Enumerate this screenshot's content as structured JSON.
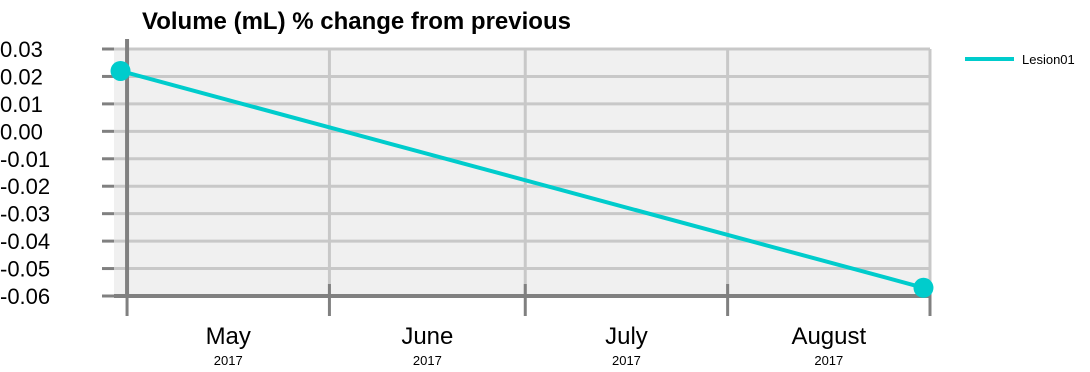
{
  "chart_data": {
    "type": "line",
    "title": "Volume (mL) % change from previous",
    "xlabel": "",
    "ylabel": "",
    "ylim": [
      -0.06,
      0.03
    ],
    "yticks": [
      "0.03",
      "0.02",
      "0.01",
      "0.00",
      "-0.01",
      "-0.02",
      "-0.03",
      "-0.04",
      "-0.05",
      "-0.06"
    ],
    "x_ticks": [
      {
        "month": "May",
        "year": "2017"
      },
      {
        "month": "June",
        "year": "2017"
      },
      {
        "month": "July",
        "year": "2017"
      },
      {
        "month": "August",
        "year": "2017"
      }
    ],
    "x_range": [
      "2017-04-29",
      "2017-09-01"
    ],
    "grid": true,
    "legend_position": "top-right",
    "series": [
      {
        "name": "Lesion01",
        "color": "#00cccc",
        "points": [
          {
            "x": "2017-04-30",
            "y": 0.022
          },
          {
            "x": "2017-08-31",
            "y": -0.057
          }
        ]
      }
    ]
  }
}
